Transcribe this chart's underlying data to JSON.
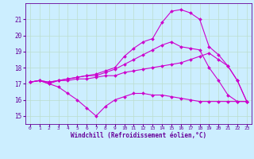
{
  "bg_color": "#cceeff",
  "grid_color": "#aaddcc",
  "line_color": "#cc00cc",
  "marker": "D",
  "marker_size": 2.0,
  "line_width": 0.8,
  "xlabel": "Windchill (Refroidissement éolien,°C)",
  "xlabel_color": "#660099",
  "tick_color": "#660099",
  "x_ticks": [
    0,
    1,
    2,
    3,
    4,
    5,
    6,
    7,
    8,
    9,
    10,
    11,
    12,
    13,
    14,
    15,
    16,
    17,
    18,
    19,
    20,
    21,
    22,
    23
  ],
  "xlim": [
    -0.5,
    23.5
  ],
  "ylim": [
    14.5,
    22.0
  ],
  "y_ticks": [
    15,
    16,
    17,
    18,
    19,
    20,
    21
  ],
  "series": [
    {
      "x": [
        0,
        1,
        2,
        3,
        4,
        5,
        6,
        7,
        8,
        9,
        10,
        11,
        12,
        13,
        14,
        15,
        16,
        17,
        18,
        19,
        20,
        21,
        22,
        23
      ],
      "y": [
        17.1,
        17.2,
        17.0,
        16.8,
        16.4,
        16.0,
        15.5,
        15.0,
        15.6,
        16.0,
        16.2,
        16.4,
        16.4,
        16.3,
        16.3,
        16.2,
        16.1,
        16.0,
        15.9,
        15.9,
        15.9,
        15.9,
        15.9,
        15.9
      ]
    },
    {
      "x": [
        0,
        1,
        2,
        3,
        4,
        5,
        6,
        7,
        8,
        9,
        10,
        11,
        12,
        13,
        14,
        15,
        16,
        17,
        18,
        19,
        20,
        21,
        22,
        23
      ],
      "y": [
        17.1,
        17.2,
        17.1,
        17.2,
        17.2,
        17.3,
        17.3,
        17.4,
        17.5,
        17.5,
        17.7,
        17.8,
        17.9,
        18.0,
        18.1,
        18.2,
        18.3,
        18.5,
        18.7,
        18.9,
        18.5,
        18.1,
        17.2,
        15.9
      ]
    },
    {
      "x": [
        0,
        1,
        2,
        3,
        4,
        5,
        6,
        7,
        8,
        9,
        10,
        11,
        12,
        13,
        14,
        15,
        16,
        17,
        18,
        19,
        20,
        21,
        22,
        23
      ],
      "y": [
        17.1,
        17.2,
        17.1,
        17.2,
        17.3,
        17.4,
        17.5,
        17.5,
        17.7,
        17.9,
        18.2,
        18.5,
        18.8,
        19.1,
        19.4,
        19.6,
        19.3,
        19.2,
        19.1,
        18.0,
        17.2,
        16.3,
        15.9,
        15.9
      ]
    },
    {
      "x": [
        0,
        1,
        2,
        3,
        4,
        5,
        6,
        7,
        8,
        9,
        10,
        11,
        12,
        13,
        14,
        15,
        16,
        17,
        18,
        19,
        20,
        21,
        22,
        23
      ],
      "y": [
        17.1,
        17.2,
        17.0,
        17.2,
        17.3,
        17.4,
        17.5,
        17.6,
        17.8,
        18.0,
        18.7,
        19.2,
        19.6,
        19.8,
        20.8,
        21.5,
        21.6,
        21.4,
        21.0,
        19.3,
        18.8,
        18.1,
        17.2,
        15.9
      ]
    }
  ]
}
